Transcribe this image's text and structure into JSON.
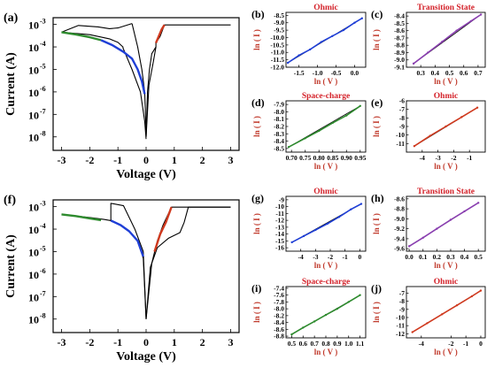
{
  "figure": {
    "background": "#ffffff",
    "colors": {
      "ohmic": "#1f3fd6",
      "transition": "#8a3fb0",
      "space_charge": "#2e8b2e",
      "ohmic_red": "#d03a1f",
      "curve": "#000000",
      "title_red": "#d4222a",
      "ylabel_red": "#c0392b"
    }
  },
  "chart_data": [
    {
      "panel": "(a)",
      "type": "line",
      "title": "",
      "xlabel": "Voltage (V)",
      "ylabel": "Current (A)",
      "xlim": [
        -3.3,
        3.3
      ],
      "ylim_log10": [
        -8.6,
        -2.7
      ],
      "yscale": "log",
      "xticks": [
        -3,
        -2,
        -1,
        0,
        1,
        2,
        3
      ],
      "xtick_labels": [
        "-3",
        "-2",
        "-1",
        "0",
        "1",
        "2",
        "3"
      ],
      "yticks_exp": [
        -8,
        -7,
        -6,
        -5,
        -4,
        -3
      ],
      "ytick_labels": [
        "10",
        "10",
        "10",
        "10",
        "10",
        "10"
      ],
      "ytick_sups": [
        "-8",
        "-7",
        "-6",
        "-5",
        "-4",
        "-3"
      ],
      "series": [
        {
          "color": "#000000",
          "x": [
            -3,
            -2,
            -1.3,
            -1,
            -0.82,
            -0.82,
            -0.5,
            -0.2,
            -0.05,
            0
          ],
          "y": [
            0.00045,
            0.00035,
            0.00023,
            0.00016,
            0.0001,
            9e-05,
            1e-05,
            1e-06,
            5e-08,
            8e-09
          ]
        },
        {
          "color": "#000000",
          "x": [
            -3,
            -2.4,
            -1.7,
            -1.3,
            -1.0,
            -0.5
          ],
          "y": [
            0.00045,
            0.0009,
            0.00078,
            0.00065,
            0.0007,
            0.0011
          ]
        },
        {
          "color": "#000000",
          "x": [
            -0.5,
            -0.3,
            -0.15,
            -0.05,
            0
          ],
          "y": [
            0.0011,
            0.0001,
            1e-05,
            1e-06,
            2e-08
          ]
        },
        {
          "color": "#000000",
          "x": [
            0,
            0.1,
            0.25,
            0.35,
            0.35,
            0.5,
            0.65,
            3.0
          ],
          "y": [
            1e-08,
            2e-06,
            2e-05,
            0.0001,
            0.00015,
            0.0003,
            0.00095,
            0.00095
          ]
        },
        {
          "color": "#000000",
          "x": [
            0,
            0.05,
            0.12,
            0.2,
            0.35
          ],
          "y": [
            1e-08,
            1e-06,
            1e-05,
            5e-05,
            0.0001
          ]
        },
        {
          "color": "#2e8b2e",
          "x": [
            -3,
            -2.5,
            -2,
            -1.6
          ],
          "y": [
            0.00045,
            0.00036,
            0.00027,
            0.0002
          ]
        },
        {
          "color": "#1f3fd6",
          "x": [
            -1.6,
            -1.2,
            -0.8,
            -0.5,
            -0.3,
            -0.15,
            -0.05
          ],
          "y": [
            0.0002,
            0.00012,
            6e-05,
            3e-05,
            1e-05,
            3e-06,
            8e-07
          ]
        },
        {
          "color": "#d03a1f",
          "x": [
            0.35,
            0.45,
            0.55,
            0.65
          ],
          "y": [
            0.00015,
            0.0003,
            0.0006,
            0.00095
          ]
        }
      ]
    },
    {
      "panel": "(f)",
      "type": "line",
      "title": "",
      "xlabel": "Voltage (V)",
      "ylabel": "Current (A)",
      "xlim": [
        -3.3,
        3.3
      ],
      "ylim_log10": [
        -8.6,
        -2.7
      ],
      "yscale": "log",
      "xticks": [
        -3,
        -2,
        -1,
        0,
        1,
        2,
        3
      ],
      "xtick_labels": [
        "-3",
        "-2",
        "-1",
        "0",
        "1",
        "2",
        "3"
      ],
      "yticks_exp": [
        -8,
        -7,
        -6,
        -5,
        -4,
        -3
      ],
      "ytick_labels": [
        "10",
        "10",
        "10",
        "10",
        "10",
        "10"
      ],
      "ytick_sups": [
        "-8",
        "-7",
        "-6",
        "-5",
        "-4",
        "-3"
      ],
      "series": [
        {
          "color": "#000000",
          "x": [
            -3,
            -2,
            -1.5,
            -1.25,
            -1.25,
            -0.8,
            -0.4,
            -0.1,
            0
          ],
          "y": [
            0.00045,
            0.00033,
            0.00027,
            0.00024,
            0.0014,
            0.0011,
            0.0001,
            1e-05,
            1e-08
          ]
        },
        {
          "color": "#000000",
          "x": [
            -1.25,
            -0.9,
            -0.6,
            -0.3,
            -0.1,
            0
          ],
          "y": [
            0.00024,
            0.00015,
            8e-05,
            3e-05,
            5e-06,
            1e-08
          ]
        },
        {
          "color": "#000000",
          "x": [
            0,
            0.2,
            0.4,
            0.6,
            0.9,
            0.9,
            3.0
          ],
          "y": [
            1e-08,
            3e-06,
            3e-05,
            0.00015,
            0.00095,
            0.00095,
            0.00095
          ]
        },
        {
          "color": "#000000",
          "x": [
            0,
            0.15,
            0.4,
            0.8,
            1.2,
            1.35,
            1.5,
            3.0
          ],
          "y": [
            1e-08,
            2e-06,
            1.5e-05,
            4e-05,
            7e-05,
            0.0002,
            0.00095,
            0.00095
          ]
        },
        {
          "color": "#2e8b2e",
          "x": [
            -3,
            -2.5,
            -2,
            -1.6
          ],
          "y": [
            0.00045,
            0.00038,
            0.0003,
            0.00025
          ]
        },
        {
          "color": "#1f3fd6",
          "x": [
            -1.25,
            -0.9,
            -0.6,
            -0.3,
            -0.1
          ],
          "y": [
            0.00024,
            0.00015,
            8e-05,
            3e-05,
            6e-06
          ]
        },
        {
          "color": "#d03a1f",
          "x": [
            0.3,
            0.5,
            0.7,
            0.9
          ],
          "y": [
            1e-05,
            6e-05,
            0.0002,
            0.00095
          ]
        }
      ]
    },
    {
      "panel": "(b)",
      "type": "scatter",
      "title": "Ohmic",
      "xlabel": "ln ( V )",
      "ylabel": "ln ( I )",
      "xlim": [
        -1.85,
        0.3
      ],
      "ylim": [
        -12.0,
        -8.3
      ],
      "xticks": [
        -1.5,
        -1.0,
        -0.5,
        0.0
      ],
      "xtick_labels": [
        "-1.5",
        "-1.0",
        "-0.5",
        "0.0"
      ],
      "yticks": [
        -12.0,
        -11.5,
        -11.0,
        -10.5,
        -10.0,
        -9.5,
        -9.0,
        -8.5
      ],
      "ytick_labels": [
        "-12.0",
        "-11.5",
        "-11.0",
        "-10.5",
        "-10.0",
        "-9.5",
        "-9.0",
        "-8.5"
      ],
      "series": [
        {
          "color": "#1f3fd6",
          "x": [
            -1.8,
            -1.5,
            -1.2,
            -0.9,
            -0.6,
            -0.3,
            0.0,
            0.2
          ],
          "y": [
            -11.7,
            -11.2,
            -10.8,
            -10.3,
            -9.9,
            -9.5,
            -9.0,
            -8.7
          ]
        }
      ]
    },
    {
      "panel": "(c)",
      "type": "scatter",
      "title": "Transition State",
      "xlabel": "ln ( V )",
      "ylabel": "ln ( I )",
      "xlim": [
        0.2,
        0.75
      ],
      "ylim": [
        -9.1,
        -8.35
      ],
      "xticks": [
        0.3,
        0.4,
        0.5,
        0.6,
        0.7
      ],
      "xtick_labels": [
        "0.3",
        "0.4",
        "0.5",
        "0.6",
        "0.7"
      ],
      "yticks": [
        -9.1,
        -9.0,
        -8.9,
        -8.8,
        -8.7,
        -8.6,
        -8.5,
        -8.4
      ],
      "ytick_labels": [
        "-9.1",
        "-9.0",
        "-8.9",
        "-8.8",
        "-8.7",
        "-8.6",
        "-8.5",
        "-8.4"
      ],
      "series": [
        {
          "color": "#8a3fb0",
          "x": [
            0.25,
            0.35,
            0.45,
            0.55,
            0.65,
            0.72
          ],
          "y": [
            -9.05,
            -8.9,
            -8.75,
            -8.6,
            -8.47,
            -8.38
          ]
        }
      ]
    },
    {
      "panel": "(d)",
      "type": "scatter",
      "title": "Space-charge",
      "xlabel": "ln ( V )",
      "ylabel": "ln ( I )",
      "xlim": [
        0.68,
        0.97
      ],
      "ylim": [
        -8.55,
        -7.85
      ],
      "xticks": [
        0.7,
        0.75,
        0.8,
        0.85,
        0.9,
        0.95
      ],
      "xtick_labels": [
        "0.70",
        "0.75",
        "0.80",
        "0.85",
        "0.90",
        "0.95"
      ],
      "yticks": [
        -8.5,
        -8.4,
        -8.3,
        -8.2,
        -8.1,
        -8.0,
        -7.9
      ],
      "ytick_labels": [
        "-8.5",
        "-8.4",
        "-8.3",
        "-8.2",
        "-8.1",
        "-8.0",
        "-7.9"
      ],
      "series": [
        {
          "color": "#2e8b2e",
          "x": [
            0.69,
            0.75,
            0.8,
            0.85,
            0.9,
            0.95
          ],
          "y": [
            -8.48,
            -8.36,
            -8.26,
            -8.15,
            -8.05,
            -7.92
          ]
        }
      ]
    },
    {
      "panel": "(e)",
      "type": "scatter",
      "title": "Ohmic",
      "xlabel": "ln ( V )",
      "ylabel": "ln ( I )",
      "xlim": [
        -5.0,
        0.0
      ],
      "ylim": [
        -12.0,
        -6.0
      ],
      "xticks": [
        -4,
        -3,
        -2,
        -1
      ],
      "xtick_labels": [
        "-4",
        "-3",
        "-2",
        "-1"
      ],
      "yticks": [
        -11,
        -10,
        -9,
        -8,
        -7,
        -6
      ],
      "ytick_labels": [
        "-11",
        "-10",
        "-9",
        "-8",
        "-7",
        "-6"
      ],
      "series": [
        {
          "color": "#d03a1f",
          "x": [
            -4.5,
            -3.5,
            -2.5,
            -1.5,
            -0.5
          ],
          "y": [
            -11.3,
            -10.1,
            -9.0,
            -7.9,
            -6.8
          ]
        }
      ]
    },
    {
      "panel": "(g)",
      "type": "scatter",
      "title": "Ohmic",
      "xlabel": "ln ( V )",
      "ylabel": "ln ( I )",
      "xlim": [
        -5.0,
        0.4
      ],
      "ylim": [
        -16.5,
        -8.5
      ],
      "xticks": [
        -4,
        -3,
        -2,
        -1,
        0
      ],
      "xtick_labels": [
        "-4",
        "-3",
        "-2",
        "-1",
        "0"
      ],
      "yticks": [
        -16,
        -15,
        -14,
        -13,
        -12,
        -11,
        -10,
        -9
      ],
      "ytick_labels": [
        "-16",
        "-15",
        "-14",
        "-13",
        "-12",
        "-11",
        "-10",
        "-9"
      ],
      "series": [
        {
          "color": "#1f3fd6",
          "x": [
            -4.6,
            -3.8,
            -3.0,
            -2.2,
            -1.4,
            -0.6,
            0.1
          ],
          "y": [
            -15.2,
            -14.3,
            -13.4,
            -12.5,
            -11.5,
            -10.4,
            -9.6
          ]
        }
      ]
    },
    {
      "panel": "(h)",
      "type": "scatter",
      "title": "Transition State",
      "xlabel": "ln ( V )",
      "ylabel": "ln ( I )",
      "xlim": [
        -0.02,
        0.55
      ],
      "ylim": [
        -9.65,
        -8.55
      ],
      "xticks": [
        0.0,
        0.1,
        0.2,
        0.3,
        0.4,
        0.5
      ],
      "xtick_labels": [
        "0.0",
        "0.1",
        "0.2",
        "0.3",
        "0.4",
        "0.5"
      ],
      "yticks": [
        -9.6,
        -9.4,
        -9.2,
        -9.0,
        -8.8,
        -8.6
      ],
      "ytick_labels": [
        "-9.6",
        "-9.4",
        "-9.2",
        "-9.0",
        "-8.8",
        "-8.6"
      ],
      "series": [
        {
          "color": "#8a3fb0",
          "x": [
            0.0,
            0.1,
            0.2,
            0.3,
            0.4,
            0.5
          ],
          "y": [
            -9.55,
            -9.38,
            -9.2,
            -9.02,
            -8.85,
            -8.68
          ]
        }
      ]
    },
    {
      "panel": "(i)",
      "type": "scatter",
      "title": "Space-charge",
      "xlabel": "ln ( V )",
      "ylabel": "ln ( I )",
      "xlim": [
        0.45,
        1.15
      ],
      "ylim": [
        -8.85,
        -7.35
      ],
      "xticks": [
        0.5,
        0.6,
        0.7,
        0.8,
        0.9,
        1.0,
        1.1
      ],
      "xtick_labels": [
        "0.5",
        "0.6",
        "0.7",
        "0.8",
        "0.9",
        "1.0",
        "1.1"
      ],
      "yticks": [
        -8.8,
        -8.6,
        -8.4,
        -8.2,
        -8.0,
        -7.8,
        -7.6,
        -7.4
      ],
      "ytick_labels": [
        "-8.8",
        "-8.6",
        "-8.4",
        "-8.2",
        "-8.0",
        "-7.8",
        "-7.6",
        "-7.4"
      ],
      "series": [
        {
          "color": "#2e8b2e",
          "x": [
            0.5,
            0.6,
            0.7,
            0.8,
            0.9,
            1.0,
            1.1
          ],
          "y": [
            -8.75,
            -8.55,
            -8.37,
            -8.18,
            -8.0,
            -7.8,
            -7.6
          ]
        }
      ]
    },
    {
      "panel": "(j)",
      "type": "scatter",
      "title": "Ohmic",
      "xlabel": "ln ( V )",
      "ylabel": "ln ( I )",
      "xlim": [
        -5.0,
        0.3
      ],
      "ylim": [
        -12.5,
        -6.2
      ],
      "xticks": [
        -4,
        -2,
        -1,
        0
      ],
      "xtick_labels": [
        "-4",
        "-2",
        "-1",
        "0"
      ],
      "yticks": [
        -12,
        -11,
        -10,
        -9,
        -8,
        -7
      ],
      "ytick_labels": [
        "-12",
        "-11",
        "-10",
        "-9",
        "-8",
        "-7"
      ],
      "series": [
        {
          "color": "#d03a1f",
          "x": [
            -4.6,
            -3.6,
            -2.6,
            -1.6,
            -0.6,
            0.0
          ],
          "y": [
            -11.8,
            -10.7,
            -9.6,
            -8.5,
            -7.4,
            -6.7
          ]
        }
      ]
    }
  ]
}
